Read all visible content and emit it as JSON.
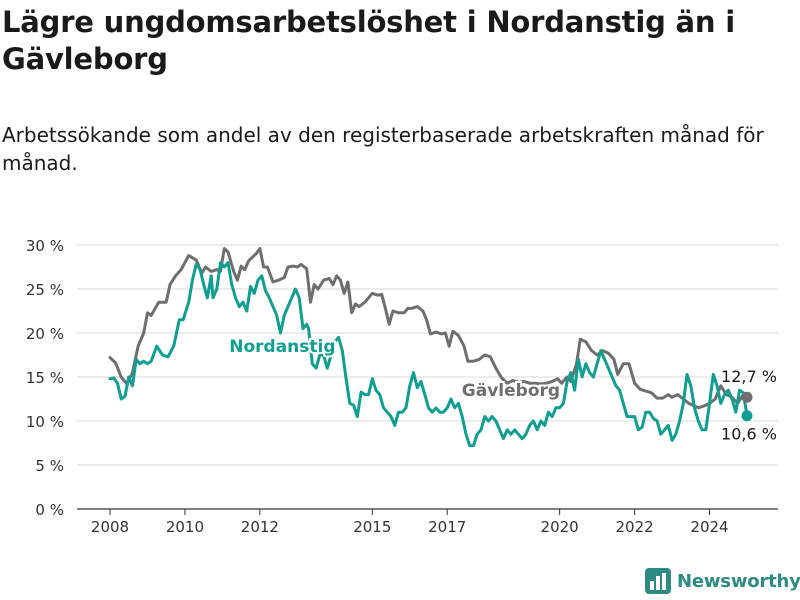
{
  "title": "Lägre ungdomsarbetslöshet i Nordanstig än i Gävleborg",
  "subtitle": "Arbetssökande som andel av den registerbaserade arbetskraften månad för månad.",
  "brand": "Newsworthy",
  "colors": {
    "nordanstig": "#0f9e90",
    "gavleborg": "#6e6e6e",
    "grid": "#d9d9d9",
    "axis": "#333333",
    "brand": "#2e8b84"
  },
  "chart_data": {
    "type": "line",
    "ylim": [
      0,
      30
    ],
    "yticks": [
      0,
      5,
      10,
      15,
      20,
      25,
      30
    ],
    "ytick_labels": [
      "0 %",
      "5 %",
      "10 %",
      "15 %",
      "20 %",
      "25 %",
      "30 %"
    ],
    "xlim": [
      2008.0,
      2025.0
    ],
    "xticks": [
      2008,
      2010,
      2012,
      2015,
      2017,
      2020,
      2022,
      2024
    ],
    "grid": true,
    "series": [
      {
        "name": "Gävleborg",
        "label_pos": [
          2018.7,
          13.5
        ],
        "end_label": "12,7 %",
        "points": [
          [
            2008.0,
            17.2
          ],
          [
            2008.15,
            16.6
          ],
          [
            2008.3,
            15.0
          ],
          [
            2008.45,
            14.2
          ],
          [
            2008.6,
            15.5
          ],
          [
            2008.75,
            18.5
          ],
          [
            2008.9,
            20.0
          ],
          [
            2009.0,
            22.3
          ],
          [
            2009.1,
            22.0
          ],
          [
            2009.3,
            23.5
          ],
          [
            2009.5,
            23.5
          ],
          [
            2009.6,
            25.5
          ],
          [
            2009.75,
            26.5
          ],
          [
            2009.9,
            27.2
          ],
          [
            2010.0,
            28.0
          ],
          [
            2010.1,
            28.8
          ],
          [
            2010.3,
            28.3
          ],
          [
            2010.45,
            26.8
          ],
          [
            2010.55,
            27.5
          ],
          [
            2010.7,
            27.0
          ],
          [
            2010.85,
            27.2
          ],
          [
            2010.95,
            27.0
          ],
          [
            2011.05,
            29.6
          ],
          [
            2011.15,
            29.2
          ],
          [
            2011.3,
            27.0
          ],
          [
            2011.4,
            26.0
          ],
          [
            2011.5,
            27.6
          ],
          [
            2011.6,
            27.2
          ],
          [
            2011.7,
            28.2
          ],
          [
            2011.9,
            29.0
          ],
          [
            2012.0,
            29.6
          ],
          [
            2012.1,
            27.5
          ],
          [
            2012.2,
            27.5
          ],
          [
            2012.35,
            25.8
          ],
          [
            2012.5,
            26.0
          ],
          [
            2012.65,
            26.3
          ],
          [
            2012.75,
            27.5
          ],
          [
            2012.9,
            27.6
          ],
          [
            2013.0,
            27.5
          ],
          [
            2013.1,
            27.8
          ],
          [
            2013.25,
            27.3
          ],
          [
            2013.35,
            23.5
          ],
          [
            2013.45,
            25.5
          ],
          [
            2013.55,
            25.0
          ],
          [
            2013.7,
            26.0
          ],
          [
            2013.85,
            26.2
          ],
          [
            2013.95,
            25.5
          ],
          [
            2014.05,
            26.5
          ],
          [
            2014.15,
            26.0
          ],
          [
            2014.25,
            24.5
          ],
          [
            2014.35,
            25.8
          ],
          [
            2014.45,
            22.3
          ],
          [
            2014.55,
            23.3
          ],
          [
            2014.65,
            23.0
          ],
          [
            2014.8,
            23.5
          ],
          [
            2014.9,
            24.0
          ],
          [
            2015.0,
            24.5
          ],
          [
            2015.15,
            24.3
          ],
          [
            2015.25,
            24.4
          ],
          [
            2015.35,
            22.8
          ],
          [
            2015.45,
            21.0
          ],
          [
            2015.55,
            22.5
          ],
          [
            2015.7,
            22.3
          ],
          [
            2015.85,
            22.3
          ],
          [
            2015.95,
            22.8
          ],
          [
            2016.05,
            22.8
          ],
          [
            2016.2,
            23.0
          ],
          [
            2016.35,
            22.5
          ],
          [
            2016.45,
            21.5
          ],
          [
            2016.55,
            19.9
          ],
          [
            2016.7,
            20.1
          ],
          [
            2016.85,
            19.9
          ],
          [
            2016.95,
            20.0
          ],
          [
            2017.05,
            18.5
          ],
          [
            2017.15,
            20.2
          ],
          [
            2017.3,
            19.7
          ],
          [
            2017.45,
            18.5
          ],
          [
            2017.55,
            16.8
          ],
          [
            2017.7,
            16.8
          ],
          [
            2017.85,
            17.0
          ],
          [
            2018.0,
            17.5
          ],
          [
            2018.15,
            17.3
          ],
          [
            2018.3,
            16.0
          ],
          [
            2018.45,
            14.9
          ],
          [
            2018.6,
            14.3
          ],
          [
            2018.75,
            14.6
          ],
          [
            2018.9,
            14.4
          ],
          [
            2019.05,
            14.5
          ],
          [
            2019.2,
            14.3
          ],
          [
            2019.35,
            14.3
          ],
          [
            2019.5,
            14.2
          ],
          [
            2019.65,
            14.3
          ],
          [
            2019.8,
            14.5
          ],
          [
            2019.95,
            14.8
          ],
          [
            2020.05,
            14.3
          ],
          [
            2020.2,
            15.0
          ],
          [
            2020.3,
            14.5
          ],
          [
            2020.45,
            16.5
          ],
          [
            2020.55,
            19.3
          ],
          [
            2020.7,
            19.0
          ],
          [
            2020.85,
            18.0
          ],
          [
            2021.0,
            17.5
          ],
          [
            2021.15,
            18.0
          ],
          [
            2021.3,
            17.7
          ],
          [
            2021.45,
            17.0
          ],
          [
            2021.55,
            15.3
          ],
          [
            2021.7,
            16.5
          ],
          [
            2021.85,
            16.5
          ],
          [
            2022.0,
            14.3
          ],
          [
            2022.15,
            13.6
          ],
          [
            2022.3,
            13.4
          ],
          [
            2022.45,
            13.2
          ],
          [
            2022.6,
            12.6
          ],
          [
            2022.75,
            12.6
          ],
          [
            2022.9,
            13.0
          ],
          [
            2023.0,
            12.7
          ],
          [
            2023.15,
            13.0
          ],
          [
            2023.3,
            12.5
          ],
          [
            2023.45,
            12.0
          ],
          [
            2023.55,
            11.8
          ],
          [
            2023.7,
            11.5
          ],
          [
            2023.85,
            11.7
          ],
          [
            2024.0,
            12.0
          ],
          [
            2024.15,
            12.5
          ],
          [
            2024.3,
            14.0
          ],
          [
            2024.45,
            13.0
          ],
          [
            2024.6,
            12.7
          ],
          [
            2024.75,
            12.0
          ],
          [
            2024.9,
            13.0
          ],
          [
            2025.0,
            12.7
          ]
        ]
      },
      {
        "name": "Nordanstig",
        "label_pos": [
          2012.6,
          18.5
        ],
        "end_label": "10,6 %",
        "points": [
          [
            2008.0,
            14.8
          ],
          [
            2008.1,
            14.9
          ],
          [
            2008.2,
            14.3
          ],
          [
            2008.3,
            12.5
          ],
          [
            2008.4,
            12.8
          ],
          [
            2008.5,
            15.0
          ],
          [
            2008.6,
            14.0
          ],
          [
            2008.7,
            17.0
          ],
          [
            2008.8,
            16.5
          ],
          [
            2008.9,
            16.8
          ],
          [
            2009.0,
            16.5
          ],
          [
            2009.1,
            16.8
          ],
          [
            2009.25,
            18.5
          ],
          [
            2009.4,
            17.5
          ],
          [
            2009.55,
            17.3
          ],
          [
            2009.7,
            18.5
          ],
          [
            2009.85,
            21.5
          ],
          [
            2009.95,
            21.5
          ],
          [
            2010.1,
            23.5
          ],
          [
            2010.2,
            26.0
          ],
          [
            2010.3,
            27.8
          ],
          [
            2010.4,
            27.3
          ],
          [
            2010.5,
            25.5
          ],
          [
            2010.6,
            24.0
          ],
          [
            2010.7,
            26.5
          ],
          [
            2010.75,
            24.0
          ],
          [
            2010.85,
            25.0
          ],
          [
            2010.95,
            28.0
          ],
          [
            2011.05,
            27.5
          ],
          [
            2011.15,
            28.0
          ],
          [
            2011.25,
            25.5
          ],
          [
            2011.35,
            24.0
          ],
          [
            2011.45,
            23.0
          ],
          [
            2011.55,
            23.5
          ],
          [
            2011.65,
            22.5
          ],
          [
            2011.75,
            25.3
          ],
          [
            2011.85,
            24.5
          ],
          [
            2011.95,
            26.0
          ],
          [
            2012.05,
            26.5
          ],
          [
            2012.15,
            24.8
          ],
          [
            2012.25,
            24.0
          ],
          [
            2012.35,
            23.0
          ],
          [
            2012.45,
            22.0
          ],
          [
            2012.55,
            20.0
          ],
          [
            2012.65,
            22.0
          ],
          [
            2012.75,
            23.0
          ],
          [
            2012.85,
            24.0
          ],
          [
            2012.95,
            25.0
          ],
          [
            2013.05,
            24.0
          ],
          [
            2013.15,
            20.5
          ],
          [
            2013.25,
            21.0
          ],
          [
            2013.3,
            20.5
          ],
          [
            2013.4,
            16.5
          ],
          [
            2013.5,
            16.0
          ],
          [
            2013.6,
            17.5
          ],
          [
            2013.7,
            17.5
          ],
          [
            2013.8,
            16.0
          ],
          [
            2013.9,
            17.5
          ],
          [
            2014.0,
            19.0
          ],
          [
            2014.1,
            19.5
          ],
          [
            2014.2,
            18.0
          ],
          [
            2014.3,
            14.8
          ],
          [
            2014.4,
            12.0
          ],
          [
            2014.5,
            11.8
          ],
          [
            2014.6,
            10.5
          ],
          [
            2014.7,
            13.3
          ],
          [
            2014.8,
            13.0
          ],
          [
            2014.9,
            13.0
          ],
          [
            2015.0,
            14.8
          ],
          [
            2015.1,
            13.5
          ],
          [
            2015.2,
            13.0
          ],
          [
            2015.3,
            11.5
          ],
          [
            2015.4,
            11.0
          ],
          [
            2015.5,
            10.5
          ],
          [
            2015.6,
            9.5
          ],
          [
            2015.7,
            11.0
          ],
          [
            2015.8,
            11.0
          ],
          [
            2015.9,
            11.5
          ],
          [
            2016.0,
            14.0
          ],
          [
            2016.1,
            15.5
          ],
          [
            2016.2,
            13.8
          ],
          [
            2016.3,
            14.5
          ],
          [
            2016.4,
            13.0
          ],
          [
            2016.5,
            11.5
          ],
          [
            2016.6,
            11.0
          ],
          [
            2016.7,
            11.5
          ],
          [
            2016.8,
            11.0
          ],
          [
            2016.9,
            11.0
          ],
          [
            2017.0,
            11.5
          ],
          [
            2017.1,
            12.5
          ],
          [
            2017.2,
            11.5
          ],
          [
            2017.3,
            12.0
          ],
          [
            2017.4,
            10.5
          ],
          [
            2017.5,
            8.5
          ],
          [
            2017.6,
            7.2
          ],
          [
            2017.7,
            7.2
          ],
          [
            2017.8,
            8.5
          ],
          [
            2017.9,
            9.0
          ],
          [
            2018.0,
            10.5
          ],
          [
            2018.1,
            10.0
          ],
          [
            2018.2,
            10.5
          ],
          [
            2018.3,
            10.0
          ],
          [
            2018.4,
            9.0
          ],
          [
            2018.5,
            8.0
          ],
          [
            2018.6,
            9.0
          ],
          [
            2018.7,
            8.5
          ],
          [
            2018.8,
            9.0
          ],
          [
            2018.9,
            8.5
          ],
          [
            2019.0,
            8.0
          ],
          [
            2019.1,
            8.5
          ],
          [
            2019.2,
            9.5
          ],
          [
            2019.3,
            10.0
          ],
          [
            2019.4,
            9.0
          ],
          [
            2019.5,
            10.0
          ],
          [
            2019.6,
            9.5
          ],
          [
            2019.7,
            11.0
          ],
          [
            2019.8,
            10.5
          ],
          [
            2019.9,
            11.5
          ],
          [
            2020.0,
            11.5
          ],
          [
            2020.1,
            12.0
          ],
          [
            2020.2,
            14.5
          ],
          [
            2020.3,
            15.5
          ],
          [
            2020.4,
            13.5
          ],
          [
            2020.5,
            17.0
          ],
          [
            2020.6,
            15.0
          ],
          [
            2020.7,
            16.5
          ],
          [
            2020.8,
            15.5
          ],
          [
            2020.9,
            15.0
          ],
          [
            2021.0,
            16.5
          ],
          [
            2021.1,
            18.0
          ],
          [
            2021.2,
            17.0
          ],
          [
            2021.3,
            16.0
          ],
          [
            2021.4,
            15.0
          ],
          [
            2021.5,
            14.0
          ],
          [
            2021.6,
            13.5
          ],
          [
            2021.7,
            12.0
          ],
          [
            2021.8,
            10.5
          ],
          [
            2021.9,
            10.5
          ],
          [
            2022.0,
            10.5
          ],
          [
            2022.1,
            9.0
          ],
          [
            2022.2,
            9.3
          ],
          [
            2022.3,
            11.0
          ],
          [
            2022.4,
            11.0
          ],
          [
            2022.5,
            10.3
          ],
          [
            2022.6,
            10.0
          ],
          [
            2022.7,
            8.5
          ],
          [
            2022.8,
            9.0
          ],
          [
            2022.9,
            9.5
          ],
          [
            2023.0,
            7.8
          ],
          [
            2023.1,
            8.5
          ],
          [
            2023.2,
            10.0
          ],
          [
            2023.3,
            12.0
          ],
          [
            2023.4,
            15.3
          ],
          [
            2023.5,
            14.0
          ],
          [
            2023.6,
            11.5
          ],
          [
            2023.7,
            10.0
          ],
          [
            2023.8,
            9.0
          ],
          [
            2023.9,
            9.0
          ],
          [
            2024.0,
            12.0
          ],
          [
            2024.1,
            15.3
          ],
          [
            2024.2,
            14.0
          ],
          [
            2024.3,
            12.0
          ],
          [
            2024.4,
            13.0
          ],
          [
            2024.5,
            13.5
          ],
          [
            2024.6,
            12.5
          ],
          [
            2024.7,
            11.0
          ],
          [
            2024.8,
            13.5
          ],
          [
            2024.9,
            13.2
          ],
          [
            2025.0,
            10.6
          ]
        ]
      }
    ]
  }
}
